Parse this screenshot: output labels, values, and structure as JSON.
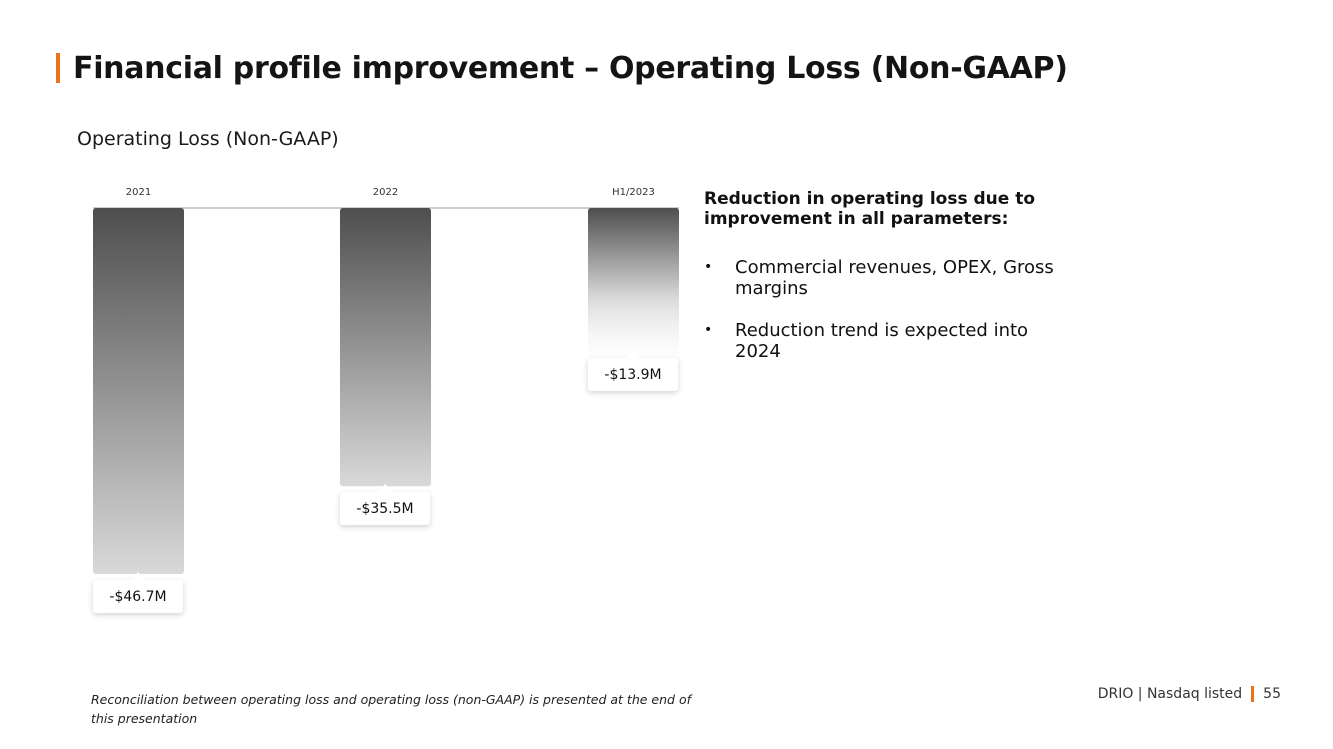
{
  "title": "Financial profile improvement – Operating Loss (Non-GAAP)",
  "colors": {
    "accent": "#e8731a",
    "bar_top": "#4e4e4e",
    "bar_bottom": "#d9d9d9"
  },
  "chart_data": {
    "type": "bar",
    "title": "Operating Loss (Non-GAAP)",
    "categories": [
      "2021",
      "2022",
      "H1/2023"
    ],
    "values": [
      -46.7,
      -35.5,
      -13.9
    ],
    "value_labels": [
      "-$46.7M",
      "-$35.5M",
      "-$13.9M"
    ],
    "unit": "$M",
    "xlabel": "",
    "ylabel": "",
    "ylim": [
      -46.7,
      0
    ],
    "grid": false,
    "legend": "none"
  },
  "side": {
    "heading": "Reduction in operating loss due to improvement in all parameters:",
    "bullets": [
      "Commercial revenues, OPEX, Gross margins",
      "Reduction trend is expected into 2024"
    ],
    "bullet_glyph": "•"
  },
  "footnote": "Reconciliation between operating loss and operating loss (non-GAAP) is presented at the end of this presentation",
  "footer": {
    "text": "DRIO | Nasdaq listed",
    "page": "55"
  }
}
